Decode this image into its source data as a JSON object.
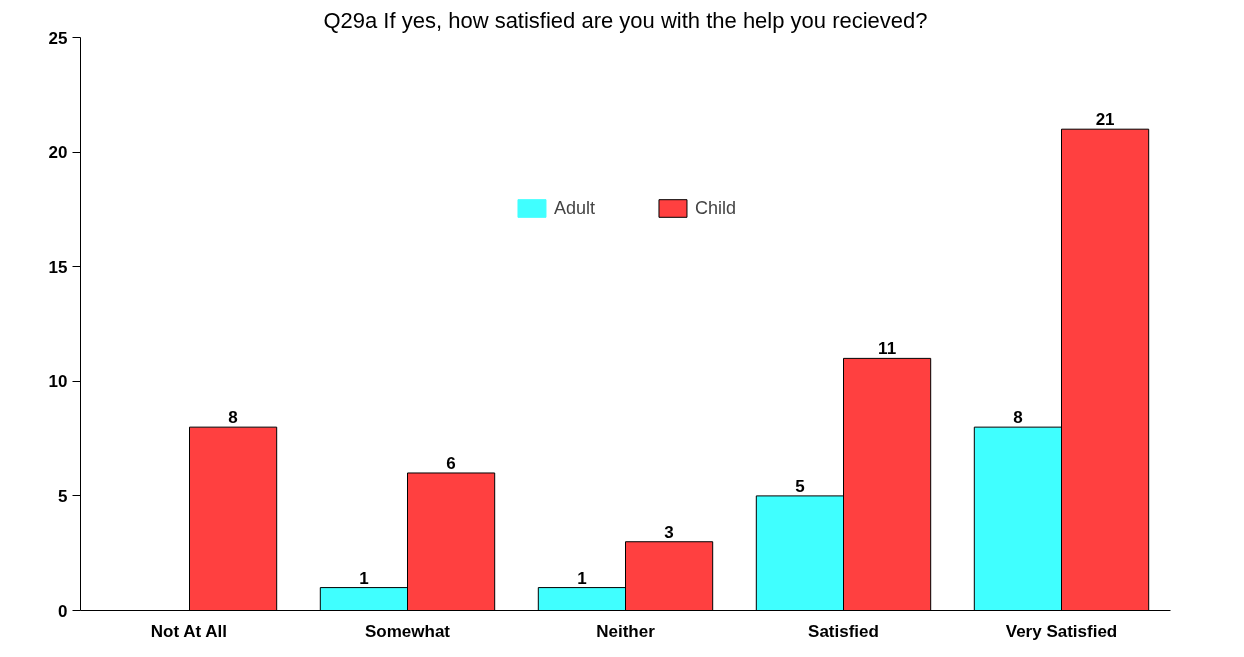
{
  "chart_data": {
    "type": "bar",
    "title": "Q29a If yes, how satisfied are you with the help you recieved?",
    "categories": [
      "Not At All",
      "Somewhat",
      "Neither",
      "Satisfied",
      "Very Satisfied"
    ],
    "series": [
      {
        "name": "Adult",
        "color": "#40ffff",
        "values": [
          0,
          1,
          1,
          5,
          8
        ],
        "value_labels": [
          null,
          "1",
          "1",
          "5",
          "8"
        ]
      },
      {
        "name": "Child",
        "color": "#ff4040",
        "values": [
          8,
          6,
          3,
          11,
          21
        ],
        "value_labels": [
          "8",
          "6",
          "3",
          "11",
          "21"
        ]
      }
    ],
    "ylim": [
      0,
      25
    ],
    "yticks": [
      0,
      5,
      10,
      15,
      20,
      25
    ],
    "grid": false,
    "legend": "top"
  }
}
